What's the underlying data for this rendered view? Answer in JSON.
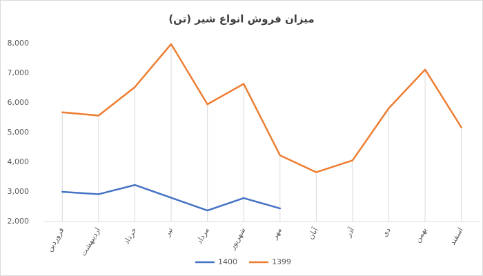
{
  "chart_data": {
    "type": "line",
    "title": "میزان فروش انواع شیر (تن)",
    "categories": [
      "فروردین",
      "اردیبهشت",
      "خرداد",
      "تیر",
      "مرداد",
      "شهریور",
      "مهر",
      "آبان",
      "آذر",
      "دی",
      "بهمن",
      "اسفند"
    ],
    "series": [
      {
        "name": "1400",
        "color": "#4472c4",
        "values": [
          3000,
          2920,
          3230,
          2800,
          2370,
          2790,
          2440,
          null,
          null,
          null,
          null,
          null
        ]
      },
      {
        "name": "1399",
        "color": "#ed7d31",
        "values": [
          5680,
          5570,
          6530,
          7980,
          5950,
          6640,
          4230,
          3660,
          4060,
          5820,
          7120,
          5170
        ]
      }
    ],
    "ylim": [
      2000,
      8000
    ],
    "yticks": [
      {
        "value": 2000,
        "label": "2,000"
      },
      {
        "value": 3000,
        "label": "3,000"
      },
      {
        "value": 4000,
        "label": "4,000"
      },
      {
        "value": 5000,
        "label": "5,000"
      },
      {
        "value": 6000,
        "label": "6,000"
      },
      {
        "value": 7000,
        "label": "7,000"
      },
      {
        "value": 8000,
        "label": "8,000"
      }
    ],
    "drop_lines": true,
    "legend": "bottom"
  }
}
